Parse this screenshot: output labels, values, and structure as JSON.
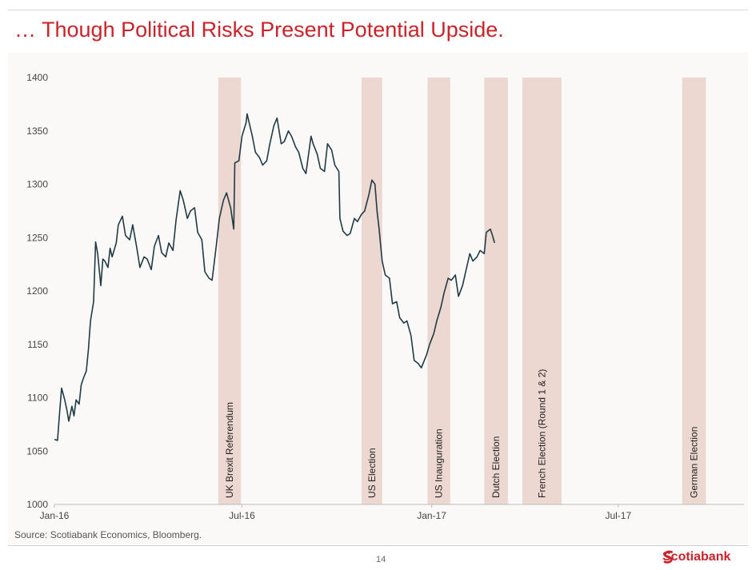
{
  "slide": {
    "title": "… Though Political Risks Present Potential Upside.",
    "source": "Source: Scotiabank Economics, Bloomberg.",
    "page_number": "14",
    "brand": "Scotiabank",
    "accent_color": "#cc2229"
  },
  "chart_data": {
    "type": "line",
    "title": "",
    "xlabel": "",
    "ylabel": "",
    "ylim": [
      1000,
      1400
    ],
    "yticks": [
      1000,
      1050,
      1100,
      1150,
      1200,
      1250,
      1300,
      1350,
      1400
    ],
    "xlim": [
      "2016-01-01",
      "2017-10-31"
    ],
    "xticks": [
      {
        "date": "2016-01-01",
        "label": "Jan-16"
      },
      {
        "date": "2016-07-01",
        "label": "Jul-16"
      },
      {
        "date": "2017-01-01",
        "label": "Jan-17"
      },
      {
        "date": "2017-07-01",
        "label": "Jul-17"
      }
    ],
    "grid": false,
    "line_color": "#1f3b46",
    "band_color": "#ecd8d0",
    "events": [
      {
        "label": "UK Brexit Referendum",
        "start": "2016-06-08",
        "end": "2016-06-30"
      },
      {
        "label": "US Election",
        "start": "2016-10-25",
        "end": "2016-11-14"
      },
      {
        "label": "US Inauguration",
        "start": "2016-12-28",
        "end": "2017-01-19"
      },
      {
        "label": "Dutch Election",
        "start": "2017-02-21",
        "end": "2017-03-16"
      },
      {
        "label": "French Election (Round 1 & 2)",
        "start": "2017-03-30",
        "end": "2017-05-07"
      },
      {
        "label": "German Election",
        "start": "2017-09-01",
        "end": "2017-09-24"
      }
    ],
    "series": [
      {
        "name": "",
        "points": [
          [
            "2016-01-01",
            1061
          ],
          [
            "2016-01-04",
            1060
          ],
          [
            "2016-01-06",
            1085
          ],
          [
            "2016-01-08",
            1109
          ],
          [
            "2016-01-11",
            1098
          ],
          [
            "2016-01-13",
            1089
          ],
          [
            "2016-01-15",
            1078
          ],
          [
            "2016-01-18",
            1092
          ],
          [
            "2016-01-20",
            1083
          ],
          [
            "2016-01-22",
            1098
          ],
          [
            "2016-01-25",
            1094
          ],
          [
            "2016-01-27",
            1112
          ],
          [
            "2016-01-29",
            1118
          ],
          [
            "2016-02-01",
            1125
          ],
          [
            "2016-02-03",
            1145
          ],
          [
            "2016-02-05",
            1172
          ],
          [
            "2016-02-08",
            1190
          ],
          [
            "2016-02-10",
            1246
          ],
          [
            "2016-02-12",
            1235
          ],
          [
            "2016-02-15",
            1205
          ],
          [
            "2016-02-17",
            1230
          ],
          [
            "2016-02-19",
            1228
          ],
          [
            "2016-02-22",
            1222
          ],
          [
            "2016-02-24",
            1240
          ],
          [
            "2016-02-26",
            1232
          ],
          [
            "2016-03-01",
            1245
          ],
          [
            "2016-03-03",
            1262
          ],
          [
            "2016-03-07",
            1270
          ],
          [
            "2016-03-10",
            1252
          ],
          [
            "2016-03-14",
            1248
          ],
          [
            "2016-03-17",
            1262
          ],
          [
            "2016-03-21",
            1240
          ],
          [
            "2016-03-24",
            1222
          ],
          [
            "2016-03-28",
            1232
          ],
          [
            "2016-03-31",
            1230
          ],
          [
            "2016-04-04",
            1220
          ],
          [
            "2016-04-07",
            1242
          ],
          [
            "2016-04-11",
            1252
          ],
          [
            "2016-04-14",
            1236
          ],
          [
            "2016-04-18",
            1232
          ],
          [
            "2016-04-21",
            1245
          ],
          [
            "2016-04-25",
            1238
          ],
          [
            "2016-04-28",
            1266
          ],
          [
            "2016-05-02",
            1294
          ],
          [
            "2016-05-05",
            1285
          ],
          [
            "2016-05-09",
            1268
          ],
          [
            "2016-05-12",
            1275
          ],
          [
            "2016-05-16",
            1278
          ],
          [
            "2016-05-19",
            1255
          ],
          [
            "2016-05-23",
            1248
          ],
          [
            "2016-05-26",
            1218
          ],
          [
            "2016-05-30",
            1212
          ],
          [
            "2016-06-02",
            1210
          ],
          [
            "2016-06-06",
            1242
          ],
          [
            "2016-06-09",
            1268
          ],
          [
            "2016-06-13",
            1285
          ],
          [
            "2016-06-16",
            1292
          ],
          [
            "2016-06-20",
            1278
          ],
          [
            "2016-06-23",
            1258
          ],
          [
            "2016-06-24",
            1320
          ],
          [
            "2016-06-28",
            1322
          ],
          [
            "2016-07-01",
            1345
          ],
          [
            "2016-07-05",
            1358
          ],
          [
            "2016-07-06",
            1366
          ],
          [
            "2016-07-11",
            1345
          ],
          [
            "2016-07-14",
            1330
          ],
          [
            "2016-07-18",
            1325
          ],
          [
            "2016-07-21",
            1318
          ],
          [
            "2016-07-25",
            1322
          ],
          [
            "2016-07-28",
            1338
          ],
          [
            "2016-08-01",
            1355
          ],
          [
            "2016-08-04",
            1362
          ],
          [
            "2016-08-08",
            1338
          ],
          [
            "2016-08-11",
            1340
          ],
          [
            "2016-08-15",
            1350
          ],
          [
            "2016-08-18",
            1345
          ],
          [
            "2016-08-22",
            1335
          ],
          [
            "2016-08-25",
            1330
          ],
          [
            "2016-08-29",
            1315
          ],
          [
            "2016-09-01",
            1310
          ],
          [
            "2016-09-06",
            1345
          ],
          [
            "2016-09-08",
            1338
          ],
          [
            "2016-09-12",
            1328
          ],
          [
            "2016-09-15",
            1315
          ],
          [
            "2016-09-19",
            1312
          ],
          [
            "2016-09-22",
            1338
          ],
          [
            "2016-09-26",
            1332
          ],
          [
            "2016-09-29",
            1318
          ],
          [
            "2016-10-03",
            1312
          ],
          [
            "2016-10-04",
            1268
          ],
          [
            "2016-10-07",
            1256
          ],
          [
            "2016-10-11",
            1252
          ],
          [
            "2016-10-14",
            1254
          ],
          [
            "2016-10-18",
            1268
          ],
          [
            "2016-10-21",
            1265
          ],
          [
            "2016-10-25",
            1272
          ],
          [
            "2016-10-28",
            1275
          ],
          [
            "2016-11-01",
            1290
          ],
          [
            "2016-11-04",
            1304
          ],
          [
            "2016-11-07",
            1300
          ],
          [
            "2016-11-09",
            1275
          ],
          [
            "2016-11-11",
            1258
          ],
          [
            "2016-11-14",
            1228
          ],
          [
            "2016-11-17",
            1215
          ],
          [
            "2016-11-21",
            1212
          ],
          [
            "2016-11-24",
            1188
          ],
          [
            "2016-11-28",
            1190
          ],
          [
            "2016-12-01",
            1175
          ],
          [
            "2016-12-05",
            1170
          ],
          [
            "2016-12-08",
            1172
          ],
          [
            "2016-12-12",
            1158
          ],
          [
            "2016-12-15",
            1135
          ],
          [
            "2016-12-19",
            1132
          ],
          [
            "2016-12-22",
            1128
          ],
          [
            "2016-12-27",
            1140
          ],
          [
            "2016-12-30",
            1150
          ],
          [
            "2017-01-03",
            1160
          ],
          [
            "2017-01-06",
            1172
          ],
          [
            "2017-01-10",
            1185
          ],
          [
            "2017-01-13",
            1198
          ],
          [
            "2017-01-17",
            1212
          ],
          [
            "2017-01-20",
            1210
          ],
          [
            "2017-01-24",
            1215
          ],
          [
            "2017-01-27",
            1195
          ],
          [
            "2017-01-31",
            1205
          ],
          [
            "2017-02-03",
            1218
          ],
          [
            "2017-02-07",
            1235
          ],
          [
            "2017-02-10",
            1228
          ],
          [
            "2017-02-14",
            1232
          ],
          [
            "2017-02-17",
            1238
          ],
          [
            "2017-02-21",
            1235
          ],
          [
            "2017-02-23",
            1255
          ],
          [
            "2017-02-27",
            1258
          ],
          [
            "2017-03-01",
            1252
          ],
          [
            "2017-03-03",
            1245
          ]
        ]
      }
    ]
  }
}
